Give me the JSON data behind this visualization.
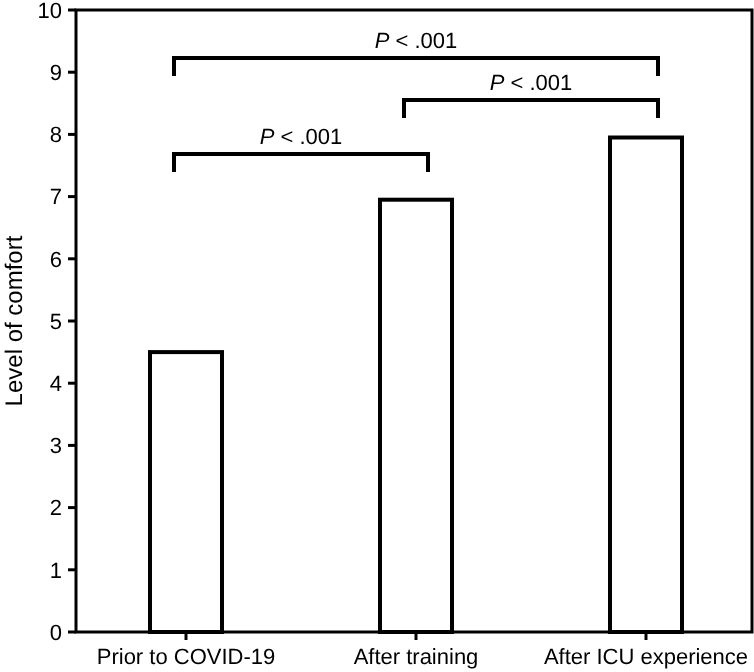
{
  "chart_data": {
    "type": "bar",
    "ylabel": "Level of comfort",
    "categories": [
      "Prior to COVID-19",
      "After training",
      "After ICU experience"
    ],
    "values": [
      4.5,
      6.95,
      7.95
    ],
    "color": "#ffffff",
    "ylim": [
      0,
      10
    ],
    "yticks": [
      0,
      1,
      2,
      3,
      4,
      5,
      6,
      7,
      8,
      9,
      10
    ],
    "grid": false,
    "annotations": [
      "P < .001",
      "P < .001",
      "P < .001"
    ]
  }
}
